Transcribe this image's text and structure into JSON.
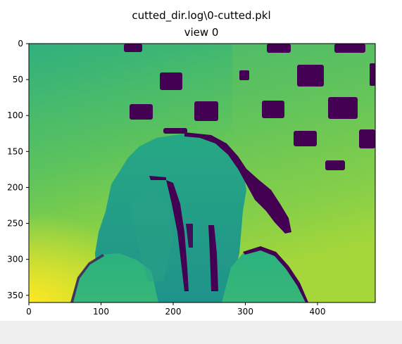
{
  "window": {
    "colors": {
      "background": "#ffffff",
      "status_strip": "#f0f0f0"
    }
  },
  "chart_data": {
    "type": "heatmap",
    "title": "cutted_dir.log\\0-cutted.pkl",
    "subtitle": "view 0",
    "xlabel": "",
    "ylabel": "",
    "x_range": [
      0,
      480
    ],
    "y_range": [
      360,
      0
    ],
    "x_ticks": [
      0,
      100,
      200,
      300,
      400
    ],
    "y_ticks": [
      0,
      50,
      100,
      150,
      200,
      250,
      300,
      350
    ],
    "colormap": "viridis",
    "grid": false,
    "colors": {
      "invalid": "#440154",
      "low": "#1f9e89",
      "mid": "#35b779",
      "background": "#57bd60",
      "high": "#b8de29",
      "max": "#fde725"
    }
  }
}
